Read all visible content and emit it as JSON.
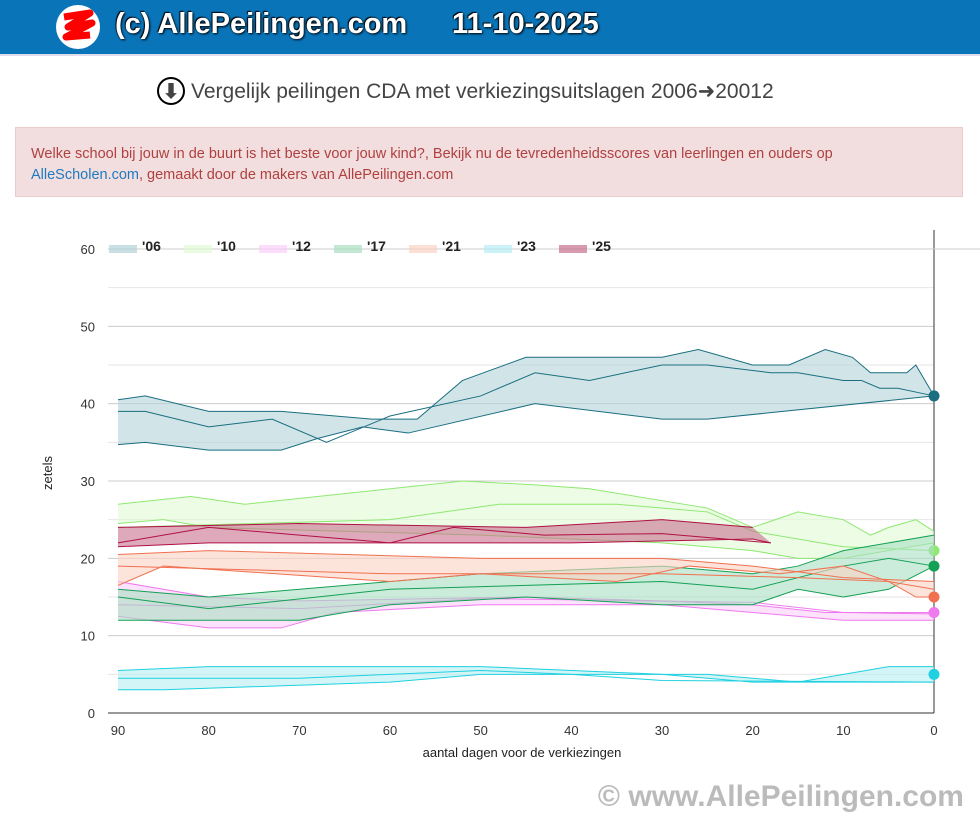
{
  "header": {
    "brand": "(c) AllePeilingen.com",
    "date": "11-10-2025"
  },
  "title": "Vergelijk peilingen CDA met verkiezingsuitslagen 2006➜20012",
  "banner": {
    "text": "Welke school bij jouw in de buurt is het beste voor jouw kind?, Bekijk nu de tevredenheidsscores van leerlingen en ouders op ",
    "link": "AlleScholen.com",
    "text2": ", gemaakt door de makers van AllePeilingen.com"
  },
  "watermark": "© www.AllePeilingen.com",
  "chart_data": {
    "type": "area",
    "xlabel": "aantal dagen voor de verkiezingen",
    "ylabel": "zetels",
    "xlim": [
      91,
      0
    ],
    "ylim": [
      0,
      60
    ],
    "xticks": [
      90,
      80,
      70,
      60,
      50,
      40,
      30,
      20,
      10,
      0
    ],
    "yticks": [
      0,
      10,
      20,
      30,
      40,
      50,
      60
    ],
    "legend_position": "top-left",
    "series": [
      {
        "name": "'06",
        "line": "#1a6e80",
        "fill": "#b3d3d8",
        "final": 41,
        "upper": [
          [
            90,
            40.5
          ],
          [
            87,
            41
          ],
          [
            80,
            39
          ],
          [
            72,
            39
          ],
          [
            62,
            38
          ],
          [
            57,
            38
          ],
          [
            52,
            43
          ],
          [
            45,
            46
          ],
          [
            30,
            46
          ],
          [
            26,
            47
          ],
          [
            20,
            45
          ],
          [
            16,
            45
          ],
          [
            12,
            47
          ],
          [
            9,
            46
          ],
          [
            7,
            44
          ],
          [
            3,
            44
          ],
          [
            2,
            45
          ],
          [
            0,
            41
          ]
        ],
        "lower": [
          [
            90,
            34.7
          ],
          [
            87,
            35
          ],
          [
            80,
            34
          ],
          [
            72,
            34
          ],
          [
            68,
            35.5
          ],
          [
            63,
            37
          ],
          [
            58,
            36.2
          ],
          [
            44,
            40
          ],
          [
            30,
            38
          ],
          [
            25,
            38
          ],
          [
            0,
            41
          ]
        ],
        "mid": [
          [
            90,
            39
          ],
          [
            87,
            39
          ],
          [
            80,
            37
          ],
          [
            73,
            38
          ],
          [
            67,
            35
          ],
          [
            60,
            38.4
          ],
          [
            50,
            41
          ],
          [
            44,
            44
          ],
          [
            38,
            43
          ],
          [
            30,
            45
          ],
          [
            25,
            45
          ],
          [
            18,
            44
          ],
          [
            15,
            44
          ],
          [
            10,
            43
          ],
          [
            8,
            43
          ],
          [
            6,
            42
          ],
          [
            4,
            42
          ],
          [
            2,
            41.5
          ],
          [
            0,
            41
          ]
        ]
      },
      {
        "name": "'10",
        "line": "#8fe872",
        "fill": "#dffad4",
        "final": 21,
        "upper": [
          [
            90,
            27
          ],
          [
            82,
            28
          ],
          [
            76,
            27
          ],
          [
            52,
            30
          ],
          [
            44,
            29.5
          ],
          [
            38,
            29
          ],
          [
            25,
            26.5
          ],
          [
            20,
            24
          ],
          [
            15,
            26
          ],
          [
            10,
            25
          ],
          [
            7,
            23
          ],
          [
            5,
            24
          ],
          [
            2,
            25
          ],
          [
            0,
            23.5
          ]
        ],
        "lower": [
          [
            90,
            24.5
          ],
          [
            85,
            25
          ],
          [
            80,
            24
          ],
          [
            50,
            23
          ],
          [
            40,
            22.5
          ],
          [
            30,
            22
          ],
          [
            20,
            21
          ],
          [
            15,
            20
          ],
          [
            10,
            20
          ],
          [
            0,
            22
          ]
        ],
        "mid": [
          [
            90,
            24
          ],
          [
            60,
            25
          ],
          [
            48,
            27
          ],
          [
            35,
            27
          ],
          [
            25,
            26
          ],
          [
            20,
            23.5
          ],
          [
            10,
            21.5
          ],
          [
            0,
            21
          ]
        ]
      },
      {
        "name": "'12",
        "line": "#ee7aee",
        "fill": "#fbcffb",
        "final": 13,
        "upper": [
          [
            90,
            17
          ],
          [
            80,
            15
          ],
          [
            70,
            14.5
          ],
          [
            45,
            15
          ],
          [
            30,
            14.5
          ],
          [
            20,
            14
          ],
          [
            12,
            13
          ],
          [
            0,
            13
          ]
        ],
        "lower": [
          [
            90,
            12.5
          ],
          [
            80,
            11
          ],
          [
            72,
            11
          ],
          [
            66,
            13
          ],
          [
            50,
            14
          ],
          [
            30,
            14
          ],
          [
            10,
            12
          ],
          [
            0,
            12
          ]
        ],
        "mid": [
          [
            90,
            14
          ],
          [
            70,
            13.5
          ],
          [
            50,
            14.8
          ],
          [
            20,
            14.3
          ],
          [
            10,
            13
          ],
          [
            0,
            12.8
          ]
        ]
      },
      {
        "name": "'17",
        "line": "#14a055",
        "fill": "#a9e0c2",
        "final": 19,
        "upper": [
          [
            90,
            16
          ],
          [
            80,
            15
          ],
          [
            60,
            17
          ],
          [
            50,
            18
          ],
          [
            30,
            19
          ],
          [
            20,
            18
          ],
          [
            15,
            19
          ],
          [
            10,
            21
          ],
          [
            5,
            22
          ],
          [
            0,
            23
          ]
        ],
        "lower": [
          [
            90,
            12
          ],
          [
            70,
            12
          ],
          [
            60,
            14
          ],
          [
            45,
            15
          ],
          [
            30,
            14
          ],
          [
            20,
            14
          ],
          [
            15,
            16
          ],
          [
            10,
            15
          ],
          [
            5,
            16
          ],
          [
            0,
            19
          ]
        ],
        "mid": [
          [
            90,
            15
          ],
          [
            80,
            13.5
          ],
          [
            60,
            16
          ],
          [
            45,
            16.5
          ],
          [
            30,
            17
          ],
          [
            20,
            16
          ],
          [
            10,
            19
          ],
          [
            5,
            20
          ],
          [
            0,
            19
          ]
        ]
      },
      {
        "name": "'21",
        "line": "#f07050",
        "fill": "#fbd2c3",
        "final": 15,
        "upper": [
          [
            90,
            20.5
          ],
          [
            80,
            21
          ],
          [
            50,
            20
          ],
          [
            30,
            20
          ],
          [
            20,
            19
          ],
          [
            10,
            17.5
          ],
          [
            0,
            17
          ]
        ],
        "lower": [
          [
            90,
            16.5
          ],
          [
            85,
            19
          ],
          [
            60,
            17
          ],
          [
            50,
            18
          ],
          [
            35,
            17
          ],
          [
            27,
            19
          ],
          [
            17,
            18
          ],
          [
            10,
            19
          ],
          [
            5,
            17
          ],
          [
            2,
            15
          ],
          [
            0,
            15
          ]
        ],
        "mid": [
          [
            90,
            19
          ],
          [
            60,
            18
          ],
          [
            30,
            18
          ],
          [
            15,
            17.5
          ],
          [
            5,
            17
          ],
          [
            0,
            16
          ]
        ]
      },
      {
        "name": "'23",
        "line": "#1fd0e0",
        "fill": "#b6eef3",
        "final": 5,
        "upper": [
          [
            90,
            5.5
          ],
          [
            80,
            6
          ],
          [
            50,
            6
          ],
          [
            30,
            5
          ],
          [
            25,
            5
          ],
          [
            15,
            4
          ],
          [
            5,
            6
          ],
          [
            0,
            6
          ]
        ],
        "lower": [
          [
            90,
            3
          ],
          [
            85,
            3
          ],
          [
            60,
            4
          ],
          [
            50,
            5
          ],
          [
            30,
            5
          ],
          [
            20,
            4
          ],
          [
            0,
            4
          ]
        ],
        "mid": [
          [
            90,
            4.5
          ],
          [
            70,
            4.5
          ],
          [
            50,
            5.5
          ],
          [
            40,
            5
          ],
          [
            30,
            4.2
          ],
          [
            0,
            4
          ]
        ]
      },
      {
        "name": "'25",
        "line": "#b01044",
        "fill": "#c8708e",
        "final": null,
        "upper": [
          [
            90,
            24
          ],
          [
            70,
            24.5
          ],
          [
            45,
            24
          ],
          [
            30,
            25
          ],
          [
            20,
            24
          ]
        ],
        "lower": [
          [
            90,
            21.5
          ],
          [
            80,
            22
          ],
          [
            60,
            22
          ],
          [
            40,
            22
          ],
          [
            20,
            22.5
          ],
          [
            18,
            22
          ]
        ],
        "mid": [
          [
            90,
            22
          ],
          [
            80,
            24
          ],
          [
            70,
            23
          ],
          [
            60,
            22
          ],
          [
            53,
            24
          ],
          [
            43,
            23
          ],
          [
            30,
            23.2
          ],
          [
            18,
            22
          ]
        ]
      }
    ]
  }
}
